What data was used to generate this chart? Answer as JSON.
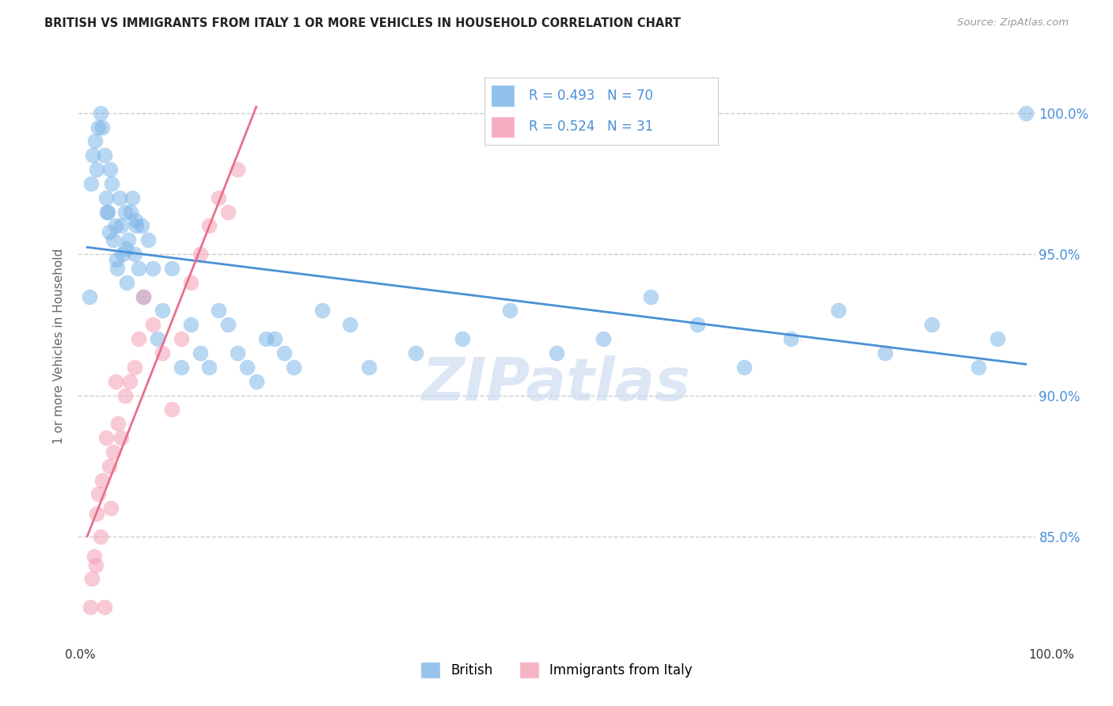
{
  "title": "BRITISH VS IMMIGRANTS FROM ITALY 1 OR MORE VEHICLES IN HOUSEHOLD CORRELATION CHART",
  "source": "Source: ZipAtlas.com",
  "ylabel": "1 or more Vehicles in Household",
  "ytick_values": [
    85.0,
    90.0,
    95.0,
    100.0
  ],
  "xlim": [
    -1.0,
    101.0
  ],
  "ylim": [
    82.0,
    101.5
  ],
  "legend_british": "British",
  "legend_italy": "Immigrants from Italy",
  "R_british": 0.493,
  "N_british": 70,
  "R_italy": 0.524,
  "N_italy": 31,
  "british_color": "#7EB6E8",
  "italy_color": "#F4A0B5",
  "british_line_color": "#4A90D9",
  "italy_line_color": "#E8708A",
  "british_x": [
    0.2,
    0.4,
    0.6,
    0.8,
    1.0,
    1.2,
    1.4,
    1.6,
    1.8,
    2.0,
    2.2,
    2.4,
    2.6,
    2.8,
    3.0,
    3.2,
    3.4,
    3.6,
    3.8,
    4.0,
    4.2,
    4.4,
    4.6,
    4.8,
    5.0,
    5.2,
    5.5,
    5.8,
    6.0,
    6.5,
    7.0,
    7.5,
    8.0,
    9.0,
    10.0,
    11.0,
    12.0,
    13.0,
    14.0,
    16.0,
    18.0,
    20.0,
    22.0,
    25.0,
    28.0,
    30.0,
    35.0,
    40.0,
    45.0,
    50.0,
    55.0,
    60.0,
    65.0,
    70.0,
    75.0,
    80.0,
    85.0,
    90.0,
    95.0,
    97.0,
    100.0,
    2.1,
    2.3,
    3.1,
    4.1,
    5.1,
    15.0,
    17.0,
    19.0,
    21.0
  ],
  "british_y": [
    93.5,
    97.5,
    98.5,
    99.0,
    98.0,
    99.5,
    100.0,
    99.5,
    98.5,
    97.0,
    96.5,
    98.0,
    97.5,
    95.5,
    96.0,
    94.5,
    97.0,
    96.0,
    95.0,
    96.5,
    94.0,
    95.5,
    96.5,
    97.0,
    95.0,
    96.0,
    94.5,
    96.0,
    93.5,
    95.5,
    94.5,
    92.0,
    93.0,
    94.5,
    91.0,
    92.5,
    91.5,
    91.0,
    93.0,
    91.5,
    90.5,
    92.0,
    91.0,
    93.0,
    92.5,
    91.0,
    91.5,
    92.0,
    93.0,
    91.5,
    92.0,
    93.5,
    92.5,
    91.0,
    92.0,
    93.0,
    91.5,
    92.5,
    91.0,
    92.0,
    100.0,
    96.5,
    95.8,
    94.8,
    95.2,
    96.2,
    92.5,
    91.0,
    92.0,
    91.5
  ],
  "italy_x": [
    0.3,
    0.5,
    0.7,
    0.9,
    1.0,
    1.2,
    1.4,
    1.6,
    1.8,
    2.0,
    2.3,
    2.5,
    2.8,
    3.0,
    3.3,
    3.6,
    4.0,
    4.5,
    5.0,
    5.5,
    6.0,
    7.0,
    8.0,
    9.0,
    10.0,
    11.0,
    12.0,
    13.0,
    14.0,
    15.0,
    16.0
  ],
  "italy_y": [
    82.5,
    83.5,
    84.3,
    84.0,
    85.8,
    86.5,
    85.0,
    87.0,
    82.5,
    88.5,
    87.5,
    86.0,
    88.0,
    90.5,
    89.0,
    88.5,
    90.0,
    90.5,
    91.0,
    92.0,
    93.5,
    92.5,
    91.5,
    89.5,
    92.0,
    94.0,
    95.0,
    96.0,
    97.0,
    96.5,
    98.0
  ]
}
